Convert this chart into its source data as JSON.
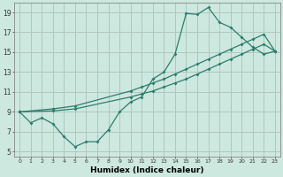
{
  "title": "",
  "xlabel": "Humidex (Indice chaleur)",
  "ylabel": "",
  "bg_color": "#cde8de",
  "grid_color": "#b0c8c0",
  "line_color": "#2d7d6e",
  "xlim": [
    -0.5,
    23.5
  ],
  "ylim": [
    4.5,
    20.0
  ],
  "yticks": [
    5,
    7,
    9,
    11,
    13,
    15,
    17,
    19
  ],
  "xticks": [
    0,
    1,
    2,
    3,
    4,
    5,
    6,
    7,
    8,
    9,
    10,
    11,
    12,
    13,
    14,
    15,
    16,
    17,
    18,
    19,
    20,
    21,
    22,
    23
  ],
  "line1_x": [
    0,
    1,
    2,
    3,
    4,
    5,
    6,
    7,
    8,
    9,
    10,
    11,
    12,
    13,
    14,
    15,
    16,
    17,
    18,
    19,
    20,
    21,
    22,
    23
  ],
  "line1_y": [
    9.0,
    7.9,
    8.4,
    7.8,
    6.5,
    5.5,
    6.0,
    6.0,
    7.2,
    9.0,
    10.0,
    10.5,
    12.3,
    13.0,
    14.8,
    18.9,
    18.8,
    19.5,
    18.0,
    17.5,
    16.5,
    15.5,
    14.8,
    15.1
  ],
  "line2_x": [
    0,
    3,
    5,
    10,
    11,
    12,
    13,
    14,
    15,
    16,
    17,
    18,
    19,
    20,
    21,
    22,
    23
  ],
  "line2_y": [
    9.0,
    9.3,
    9.6,
    11.1,
    11.5,
    11.9,
    12.3,
    12.8,
    13.3,
    13.8,
    14.3,
    14.8,
    15.3,
    15.8,
    16.3,
    16.8,
    15.1
  ],
  "line3_x": [
    0,
    3,
    5,
    10,
    11,
    12,
    13,
    14,
    15,
    16,
    17,
    18,
    19,
    20,
    21,
    22,
    23
  ],
  "line3_y": [
    9.0,
    9.1,
    9.3,
    10.5,
    10.8,
    11.1,
    11.5,
    11.9,
    12.3,
    12.8,
    13.3,
    13.8,
    14.3,
    14.8,
    15.3,
    15.8,
    15.1
  ]
}
